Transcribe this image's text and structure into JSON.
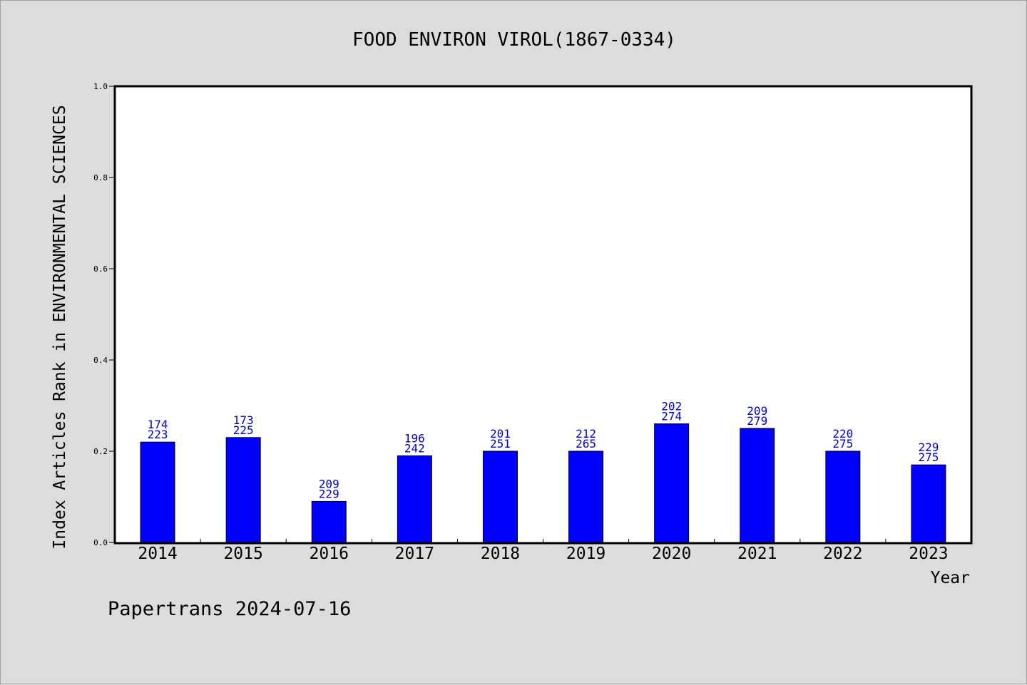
{
  "chart_data": {
    "type": "bar",
    "title": "FOOD ENVIRON VIROL(1867-0334)",
    "xlabel": "Year",
    "ylabel": "Index Articles Rank in ENVIRONMENTAL SCIENCES",
    "categories": [
      "2014",
      "2015",
      "2016",
      "2017",
      "2018",
      "2019",
      "2020",
      "2021",
      "2022",
      "2023"
    ],
    "values": [
      0.22,
      0.23,
      0.09,
      0.19,
      0.2,
      0.2,
      0.26,
      0.25,
      0.2,
      0.17
    ],
    "rank_labels": [
      "174",
      "173",
      "209",
      "196",
      "201",
      "212",
      "202",
      "209",
      "220",
      "229"
    ],
    "total_labels": [
      "223",
      "225",
      "229",
      "242",
      "251",
      "265",
      "274",
      "279",
      "275",
      "275"
    ],
    "y_ticks": [
      "0.0",
      "0.2",
      "0.4",
      "0.6",
      "0.8",
      "1.0"
    ],
    "ylim": [
      0,
      1
    ],
    "grid": false,
    "colors": {
      "bar": "#0000ff",
      "bar_label": "#0000cc",
      "axis": "#000000",
      "background": "#dcdcdc",
      "plot_bg": "#ffffff"
    }
  },
  "footer": {
    "credit": "Papertrans 2024-07-16"
  }
}
